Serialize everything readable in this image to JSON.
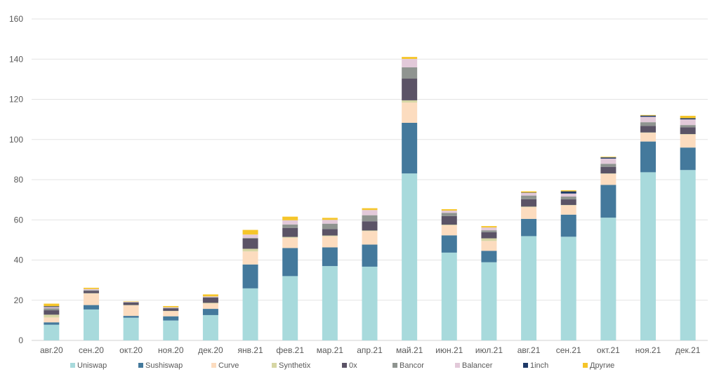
{
  "chart_data": {
    "type": "bar",
    "stacked": true,
    "title": "",
    "xlabel": "",
    "ylabel": "",
    "ylim": [
      0,
      160
    ],
    "yticks": [
      0,
      20,
      40,
      60,
      80,
      100,
      120,
      140,
      160
    ],
    "grid": true,
    "legend_position": "bottom",
    "categories": [
      "авг.20",
      "сен.20",
      "окт.20",
      "ноя.20",
      "дек.20",
      "янв.21",
      "фев.21",
      "мар.21",
      "апр.21",
      "май.21",
      "июн.21",
      "июл.21",
      "авг.21",
      "сен.21",
      "окт.21",
      "ноя.21",
      "дек.21"
    ],
    "series": [
      {
        "name": "Uniswap",
        "color": "#a8dadc",
        "values": [
          7.8,
          15.4,
          11.3,
          9.9,
          12.6,
          25.9,
          32.0,
          37.0,
          36.7,
          83.1,
          43.7,
          38.9,
          51.9,
          51.6,
          61.1,
          83.7,
          84.8
        ]
      },
      {
        "name": "Sushiswap",
        "color": "#44799c",
        "values": [
          1.2,
          2.2,
          0.9,
          2.1,
          3.1,
          11.9,
          14.0,
          9.3,
          11.0,
          25.2,
          8.6,
          5.7,
          8.6,
          11.0,
          16.3,
          15.3,
          11.2
        ]
      },
      {
        "name": "Curve",
        "color": "#fcdcbf",
        "values": [
          2.4,
          5.7,
          5.3,
          2.6,
          2.7,
          6.5,
          5.1,
          5.5,
          6.7,
          10.1,
          5.0,
          4.9,
          5.8,
          4.6,
          5.5,
          4.3,
          6.5
        ]
      },
      {
        "name": "Synthetix",
        "color": "#d6d6a4",
        "values": [
          1.4,
          0.2,
          0.1,
          0.1,
          0.3,
          1.3,
          0.4,
          0.4,
          0.3,
          1.1,
          0.3,
          1.3,
          0.3,
          0.2,
          0.2,
          0.2,
          0.2
        ]
      },
      {
        "name": "0x",
        "color": "#5b5366",
        "values": [
          2.2,
          1.2,
          1.3,
          1.3,
          2.6,
          5.1,
          4.5,
          3.2,
          4.6,
          10.8,
          4.3,
          3.1,
          3.7,
          2.8,
          3.3,
          3.3,
          3.4
        ]
      },
      {
        "name": "Bancor",
        "color": "#8f9490",
        "values": [
          1.0,
          0.3,
          0.1,
          0.2,
          0.2,
          0.3,
          1.7,
          2.7,
          3.0,
          5.6,
          1.6,
          0.9,
          1.8,
          1.4,
          1.5,
          1.8,
          1.1
        ]
      },
      {
        "name": "Balancer",
        "color": "#e2c9d9",
        "values": [
          0.6,
          0.6,
          0.2,
          0.3,
          0.4,
          1.7,
          2.1,
          1.9,
          2.6,
          4.2,
          1.1,
          1.4,
          1.3,
          1.5,
          2.6,
          2.7,
          2.8
        ]
      },
      {
        "name": "1inch",
        "color": "#1f3a68",
        "values": [
          0.4,
          0,
          0,
          0,
          0,
          0,
          0,
          0,
          0,
          0,
          0,
          0,
          0.2,
          1.1,
          0.6,
          0.6,
          0.6
        ]
      },
      {
        "name": "Другие",
        "color": "#f5c52a",
        "values": [
          1.3,
          0.6,
          0.2,
          0.6,
          1.0,
          2.3,
          1.8,
          1.0,
          0.9,
          1.0,
          0.7,
          0.7,
          0.6,
          0.5,
          0.3,
          0.3,
          1.2
        ]
      }
    ]
  }
}
